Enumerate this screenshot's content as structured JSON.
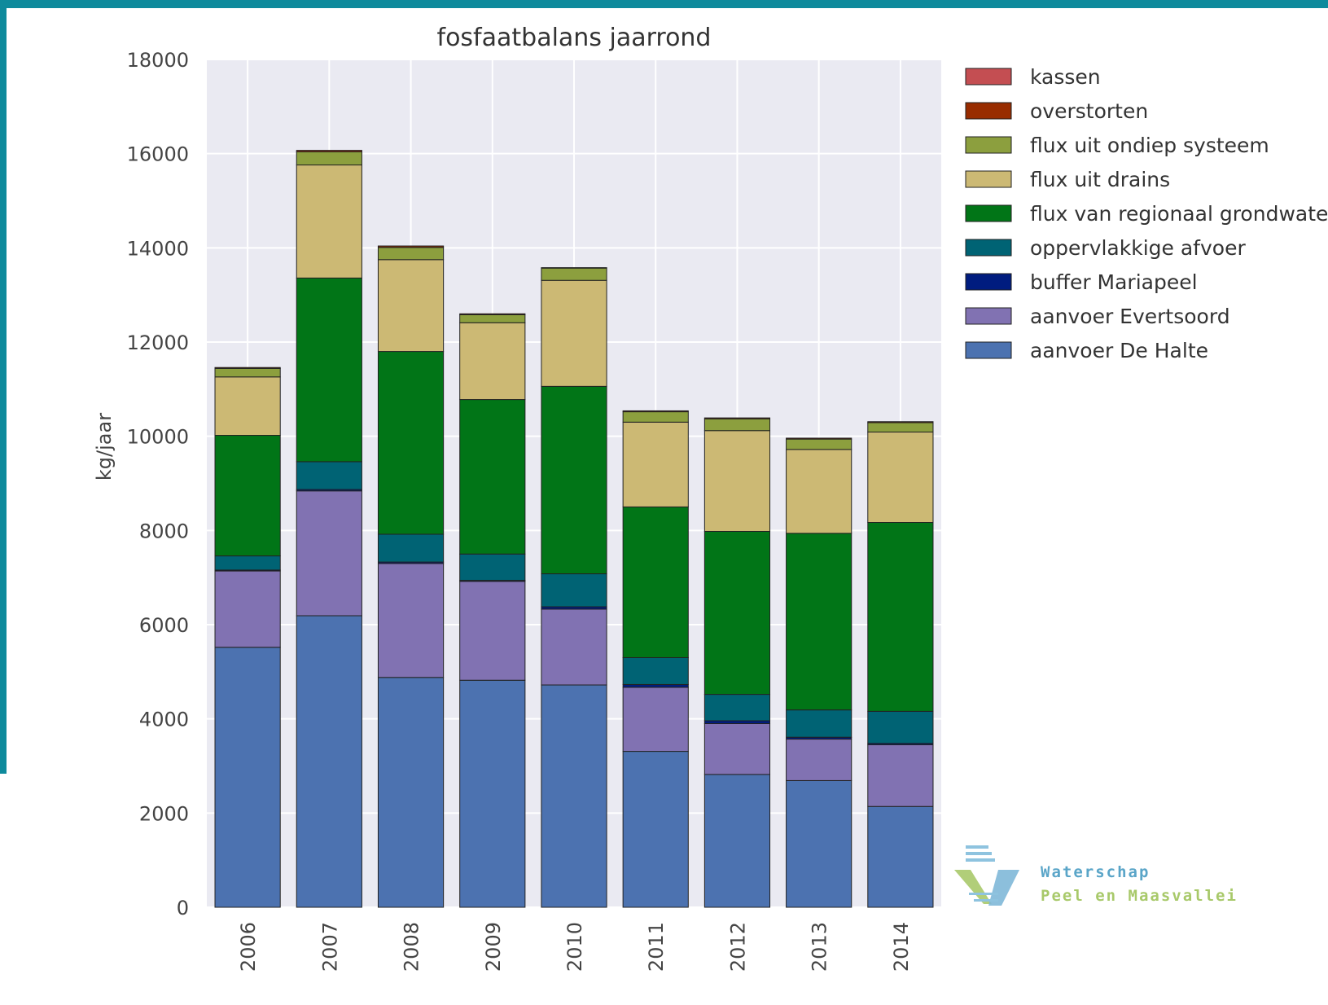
{
  "chart_data": {
    "type": "bar",
    "stacked": true,
    "title": "fosfaatbalans jaarrond",
    "xlabel": "",
    "ylabel": "kg/jaar",
    "ylim": [
      0,
      18000
    ],
    "yticks": [
      0,
      2000,
      4000,
      6000,
      8000,
      10000,
      12000,
      14000,
      16000,
      18000
    ],
    "grid": true,
    "legend_position": "right",
    "categories": [
      "2006",
      "2007",
      "2008",
      "2009",
      "2010",
      "2011",
      "2012",
      "2013",
      "2014"
    ],
    "series": [
      {
        "name": "aanvoer De Halte",
        "color": "#4c72b0",
        "values": [
          5520,
          6190,
          4880,
          4820,
          4720,
          3310,
          2820,
          2690,
          2140
        ]
      },
      {
        "name": "aanvoer Evertsoord",
        "color": "#8172b2",
        "values": [
          1620,
          2650,
          2420,
          2100,
          1610,
          1360,
          1080,
          880,
          1310
        ]
      },
      {
        "name": "buffer Mariapeel",
        "color": "#001c7f",
        "values": [
          20,
          30,
          30,
          20,
          50,
          60,
          60,
          40,
          30
        ]
      },
      {
        "name": "oppervlakkige afvoer",
        "color": "#006374",
        "values": [
          300,
          590,
          590,
          560,
          700,
          570,
          560,
          580,
          680
        ]
      },
      {
        "name": "flux van regionaal grondwater",
        "color": "#017517",
        "values": [
          2560,
          3900,
          3880,
          3280,
          3980,
          3200,
          3460,
          3750,
          4010
        ]
      },
      {
        "name": "flux uit drains",
        "color": "#ccb974",
        "values": [
          1240,
          2400,
          1950,
          1630,
          2250,
          1800,
          2140,
          1780,
          1920
        ]
      },
      {
        "name": "flux uit ondiep systeem",
        "color": "#8c9f3e",
        "values": [
          180,
          280,
          260,
          170,
          260,
          220,
          250,
          220,
          200
        ]
      },
      {
        "name": "overstorten",
        "color": "#982c00",
        "values": [
          20,
          30,
          30,
          20,
          10,
          20,
          20,
          20,
          20
        ]
      },
      {
        "name": "kassen",
        "color": "#c44e52",
        "values": [
          0,
          0,
          0,
          0,
          0,
          0,
          0,
          0,
          0
        ]
      }
    ],
    "legend_order": [
      "kassen",
      "overstorten",
      "flux uit ondiep systeem",
      "flux uit drains",
      "flux van regionaal grondwater",
      "oppervlakkige afvoer",
      "buffer Mariapeel",
      "aanvoer Evertsoord",
      "aanvoer De Halte"
    ]
  },
  "logo": {
    "line1": "Waterschap",
    "line2": "Peel en Maasvallei",
    "color1": "#5aa5c8",
    "color2": "#a8c96a"
  }
}
